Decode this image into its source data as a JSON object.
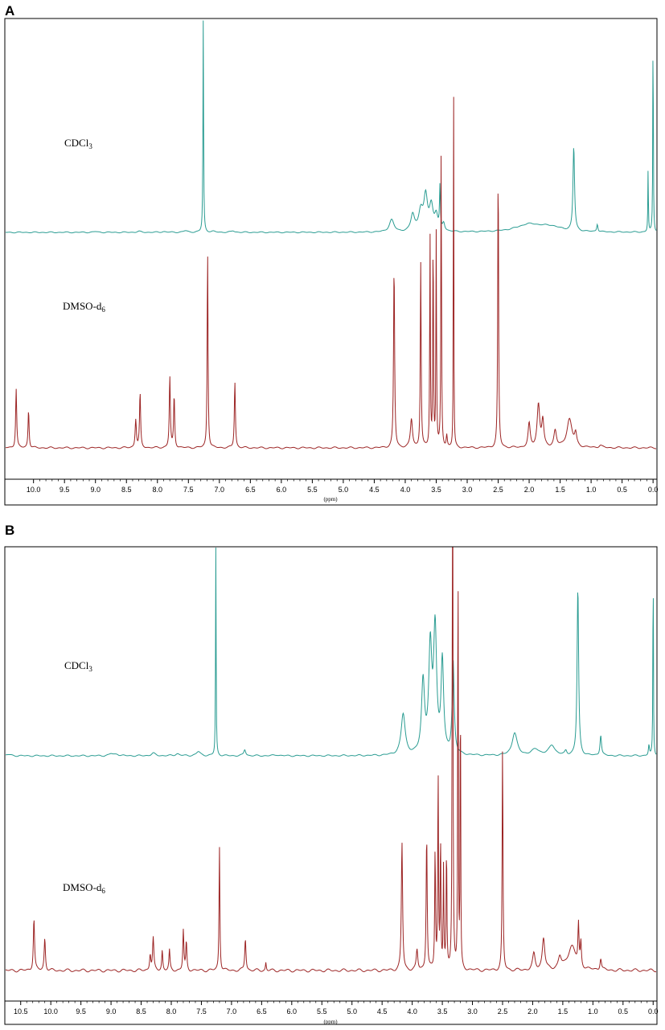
{
  "panels": [
    {
      "label": "A",
      "x_ticks": [
        "10.0",
        "9.5",
        "9.0",
        "8.5",
        "8.0",
        "7.5",
        "7.0",
        "6.5",
        "6.0",
        "5.5",
        "5.0",
        "4.5",
        "4.0",
        "3.5",
        "3.0",
        "2.5",
        "2.0",
        "1.5",
        "1.0",
        "0.5",
        "0.0"
      ],
      "x_unit": "(ppm)"
    },
    {
      "label": "B",
      "x_ticks": [
        "10.5",
        "10.0",
        "9.5",
        "9.0",
        "8.5",
        "8.0",
        "7.5",
        "7.0",
        "6.5",
        "6.0",
        "5.5",
        "5.0",
        "4.5",
        "4.0",
        "3.5",
        "3.0",
        "2.5",
        "2.0",
        "1.5",
        "1.0",
        "0.5",
        "0.0"
      ],
      "x_unit": "(ppm)"
    }
  ],
  "colors": {
    "cdcl3": "#2a9c92",
    "dmso": "#9c2424",
    "frame": "#000000"
  },
  "chart_data": [
    {
      "type": "line",
      "panel": "A",
      "x_axis": {
        "unit": "ppm",
        "range": [
          10.45,
          -0.05
        ],
        "reversed": true
      },
      "series": [
        {
          "name": "CDCl3",
          "peaks": [
            {
              "ppm": 9.0,
              "height": 0.005,
              "width": 0.04
            },
            {
              "ppm": 8.3,
              "height": 0.006,
              "width": 0.04
            },
            {
              "ppm": 7.9,
              "height": 0.005,
              "width": 0.04
            },
            {
              "ppm": 7.55,
              "height": 0.01,
              "width": 0.04
            },
            {
              "ppm": 7.26,
              "height": 1.4,
              "width": 0.006
            },
            {
              "ppm": 7.1,
              "height": 0.005,
              "width": 0.04
            },
            {
              "ppm": 6.78,
              "height": 0.01,
              "width": 0.03
            },
            {
              "ppm": 4.22,
              "height": 0.08,
              "width": 0.045
            },
            {
              "ppm": 3.88,
              "height": 0.11,
              "width": 0.035
            },
            {
              "ppm": 3.75,
              "height": 0.13,
              "width": 0.04
            },
            {
              "ppm": 3.67,
              "height": 0.22,
              "width": 0.035
            },
            {
              "ppm": 3.58,
              "height": 0.16,
              "width": 0.035
            },
            {
              "ppm": 3.5,
              "height": 0.1,
              "width": 0.03
            },
            {
              "ppm": 3.44,
              "height": 0.28,
              "width": 0.008
            },
            {
              "ppm": 3.38,
              "height": 0.05,
              "width": 0.02
            },
            {
              "ppm": 2.0,
              "height": 0.05,
              "width": 0.25
            },
            {
              "ppm": 1.65,
              "height": 0.03,
              "width": 0.2
            },
            {
              "ppm": 1.28,
              "height": 0.55,
              "width": 0.015
            },
            {
              "ppm": 0.9,
              "height": 0.05,
              "width": 0.012
            },
            {
              "ppm": 0.08,
              "height": 0.42,
              "width": 0.005
            },
            {
              "ppm": 0.0,
              "height": 1.4,
              "width": 0.005
            }
          ]
        },
        {
          "name": "DMSO-d6",
          "peaks": [
            {
              "ppm": 10.28,
              "height": 0.25,
              "width": 0.01
            },
            {
              "ppm": 10.08,
              "height": 0.16,
              "width": 0.01
            },
            {
              "ppm": 8.35,
              "height": 0.12,
              "width": 0.012
            },
            {
              "ppm": 8.28,
              "height": 0.23,
              "width": 0.01
            },
            {
              "ppm": 7.8,
              "height": 0.3,
              "width": 0.01
            },
            {
              "ppm": 7.73,
              "height": 0.22,
              "width": 0.01
            },
            {
              "ppm": 7.19,
              "height": 0.84,
              "width": 0.008
            },
            {
              "ppm": 6.75,
              "height": 0.28,
              "width": 0.01
            },
            {
              "ppm": 4.18,
              "height": 0.77,
              "width": 0.01
            },
            {
              "ppm": 3.9,
              "height": 0.12,
              "width": 0.02
            },
            {
              "ppm": 3.75,
              "height": 0.78,
              "width": 0.008
            },
            {
              "ppm": 3.6,
              "height": 0.92,
              "width": 0.006
            },
            {
              "ppm": 3.55,
              "height": 0.93,
              "width": 0.006
            },
            {
              "ppm": 3.5,
              "height": 0.9,
              "width": 0.006
            },
            {
              "ppm": 3.42,
              "height": 1.3,
              "width": 0.006
            },
            {
              "ppm": 3.33,
              "height": 0.05,
              "width": 0.01
            },
            {
              "ppm": 3.22,
              "height": 1.8,
              "width": 0.004
            },
            {
              "ppm": 2.5,
              "height": 1.2,
              "width": 0.008
            },
            {
              "ppm": 2.0,
              "height": 0.1,
              "width": 0.02
            },
            {
              "ppm": 1.85,
              "height": 0.18,
              "width": 0.025
            },
            {
              "ppm": 1.78,
              "height": 0.11,
              "width": 0.02
            },
            {
              "ppm": 1.58,
              "height": 0.07,
              "width": 0.025
            },
            {
              "ppm": 1.35,
              "height": 0.12,
              "width": 0.05
            },
            {
              "ppm": 1.25,
              "height": 0.05,
              "width": 0.02
            },
            {
              "ppm": 0.85,
              "height": 0.01,
              "width": 0.03
            }
          ]
        }
      ],
      "labels": [
        "CDCl3",
        "DMSO-d6"
      ]
    },
    {
      "type": "line",
      "panel": "B",
      "x_axis": {
        "unit": "ppm",
        "range": [
          10.75,
          -0.05
        ],
        "reversed": true
      },
      "series": [
        {
          "name": "CDCl3",
          "peaks": [
            {
              "ppm": 10.7,
              "height": 0.006,
              "width": 0.05
            },
            {
              "ppm": 9.0,
              "height": 0.01,
              "width": 0.04
            },
            {
              "ppm": 8.9,
              "height": 0.008,
              "width": 0.04
            },
            {
              "ppm": 8.3,
              "height": 0.012,
              "width": 0.04
            },
            {
              "ppm": 7.9,
              "height": 0.01,
              "width": 0.04
            },
            {
              "ppm": 7.55,
              "height": 0.02,
              "width": 0.04
            },
            {
              "ppm": 7.26,
              "height": 1.2,
              "width": 0.005
            },
            {
              "ppm": 6.78,
              "height": 0.03,
              "width": 0.02
            },
            {
              "ppm": 6.25,
              "height": 0.005,
              "width": 0.04
            },
            {
              "ppm": 4.15,
              "height": 0.2,
              "width": 0.04
            },
            {
              "ppm": 3.82,
              "height": 0.35,
              "width": 0.03
            },
            {
              "ppm": 3.7,
              "height": 0.5,
              "width": 0.03
            },
            {
              "ppm": 3.62,
              "height": 0.6,
              "width": 0.03
            },
            {
              "ppm": 3.5,
              "height": 0.45,
              "width": 0.025
            },
            {
              "ppm": 3.32,
              "height": 0.45,
              "width": 0.02
            },
            {
              "ppm": 2.3,
              "height": 0.11,
              "width": 0.05
            },
            {
              "ppm": 1.95,
              "height": 0.03,
              "width": 0.08
            },
            {
              "ppm": 1.68,
              "height": 0.05,
              "width": 0.06
            },
            {
              "ppm": 1.45,
              "height": 0.02,
              "width": 0.02
            },
            {
              "ppm": 1.25,
              "height": 0.82,
              "width": 0.015
            },
            {
              "ppm": 0.87,
              "height": 0.1,
              "width": 0.015
            },
            {
              "ppm": 0.07,
              "height": 0.05,
              "width": 0.01
            },
            {
              "ppm": 0.0,
              "height": 1.0,
              "width": 0.005
            }
          ]
        },
        {
          "name": "DMSO-d6",
          "peaks": [
            {
              "ppm": 10.28,
              "height": 0.13,
              "width": 0.012
            },
            {
              "ppm": 10.1,
              "height": 0.08,
              "width": 0.012
            },
            {
              "ppm": 8.35,
              "height": 0.04,
              "width": 0.012
            },
            {
              "ppm": 8.3,
              "height": 0.08,
              "width": 0.012
            },
            {
              "ppm": 8.15,
              "height": 0.05,
              "width": 0.01
            },
            {
              "ppm": 8.03,
              "height": 0.05,
              "width": 0.01
            },
            {
              "ppm": 7.8,
              "height": 0.1,
              "width": 0.01
            },
            {
              "ppm": 7.75,
              "height": 0.07,
              "width": 0.01
            },
            {
              "ppm": 7.2,
              "height": 0.31,
              "width": 0.008
            },
            {
              "ppm": 6.77,
              "height": 0.08,
              "width": 0.012
            },
            {
              "ppm": 6.43,
              "height": 0.02,
              "width": 0.008
            },
            {
              "ppm": 4.17,
              "height": 0.32,
              "width": 0.012
            },
            {
              "ppm": 3.92,
              "height": 0.05,
              "width": 0.015
            },
            {
              "ppm": 3.76,
              "height": 0.34,
              "width": 0.01
            },
            {
              "ppm": 3.62,
              "height": 0.3,
              "width": 0.008
            },
            {
              "ppm": 3.57,
              "height": 0.5,
              "width": 0.007
            },
            {
              "ppm": 3.53,
              "height": 0.33,
              "width": 0.007
            },
            {
              "ppm": 3.48,
              "height": 0.25,
              "width": 0.007
            },
            {
              "ppm": 3.43,
              "height": 0.3,
              "width": 0.007
            },
            {
              "ppm": 3.33,
              "height": 2.5,
              "width": 0.005
            },
            {
              "ppm": 3.24,
              "height": 1.2,
              "width": 0.005
            },
            {
              "ppm": 3.2,
              "height": 0.8,
              "width": 0.005
            },
            {
              "ppm": 2.5,
              "height": 0.56,
              "width": 0.008
            },
            {
              "ppm": 1.98,
              "height": 0.04,
              "width": 0.025
            },
            {
              "ppm": 1.82,
              "height": 0.08,
              "width": 0.025
            },
            {
              "ppm": 1.55,
              "height": 0.03,
              "width": 0.03
            },
            {
              "ppm": 1.35,
              "height": 0.06,
              "width": 0.08
            },
            {
              "ppm": 1.24,
              "height": 0.1,
              "width": 0.01
            },
            {
              "ppm": 1.2,
              "height": 0.06,
              "width": 0.01
            },
            {
              "ppm": 0.87,
              "height": 0.03,
              "width": 0.015
            }
          ]
        }
      ],
      "labels": [
        "CDCl3",
        "DMSO-d6"
      ]
    }
  ]
}
